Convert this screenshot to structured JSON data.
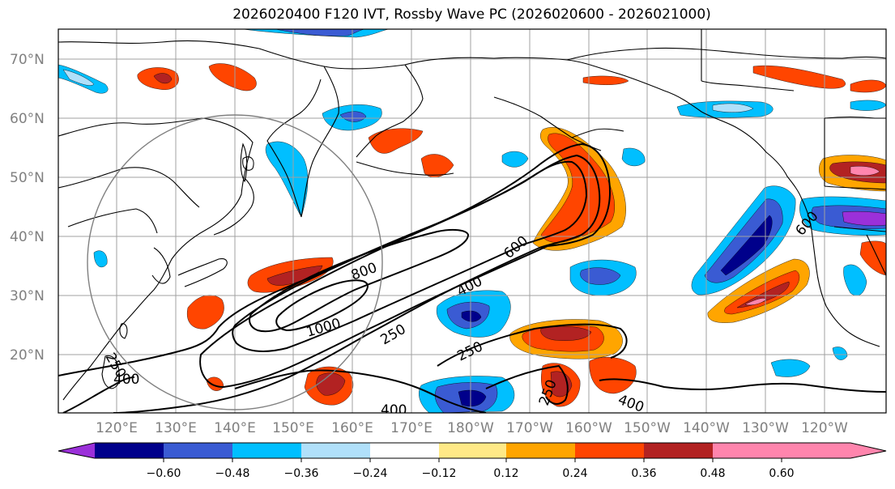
{
  "title": "2026020400 F120 IVT, Rossby Wave PC (2026020600 - 2026021000)",
  "lat_labels": [
    "70°N",
    "60°N",
    "50°N",
    "40°N",
    "30°N",
    "20°N"
  ],
  "lon_labels": [
    "120°E",
    "130°E",
    "140°E",
    "150°E",
    "160°E",
    "170°E",
    "180°W",
    "170°W",
    "160°W",
    "150°W",
    "140°W",
    "130°W",
    "120°W"
  ],
  "colorbar": {
    "colors": [
      "#9b30d9",
      "#00008b",
      "#3a5bd3",
      "#00bfff",
      "#b0e0fa",
      "#ffffff",
      "#ffe987",
      "#ffa500",
      "#ff4500",
      "#b22222",
      "#ff85ad"
    ],
    "ticks": [
      "−0.60",
      "−0.48",
      "−0.36",
      "−0.24",
      "−0.12",
      "0.12",
      "0.24",
      "0.36",
      "0.48",
      "0.60"
    ]
  },
  "ivt_contour_labels": [
    "800",
    "600",
    "400",
    "1000",
    "250",
    "250",
    "400",
    "250",
    "400",
    "400",
    "600",
    "250"
  ],
  "colors": {
    "contour": "#000000",
    "grid": "#a0a0a0",
    "coast": "#000000",
    "circle": "#808080"
  }
}
